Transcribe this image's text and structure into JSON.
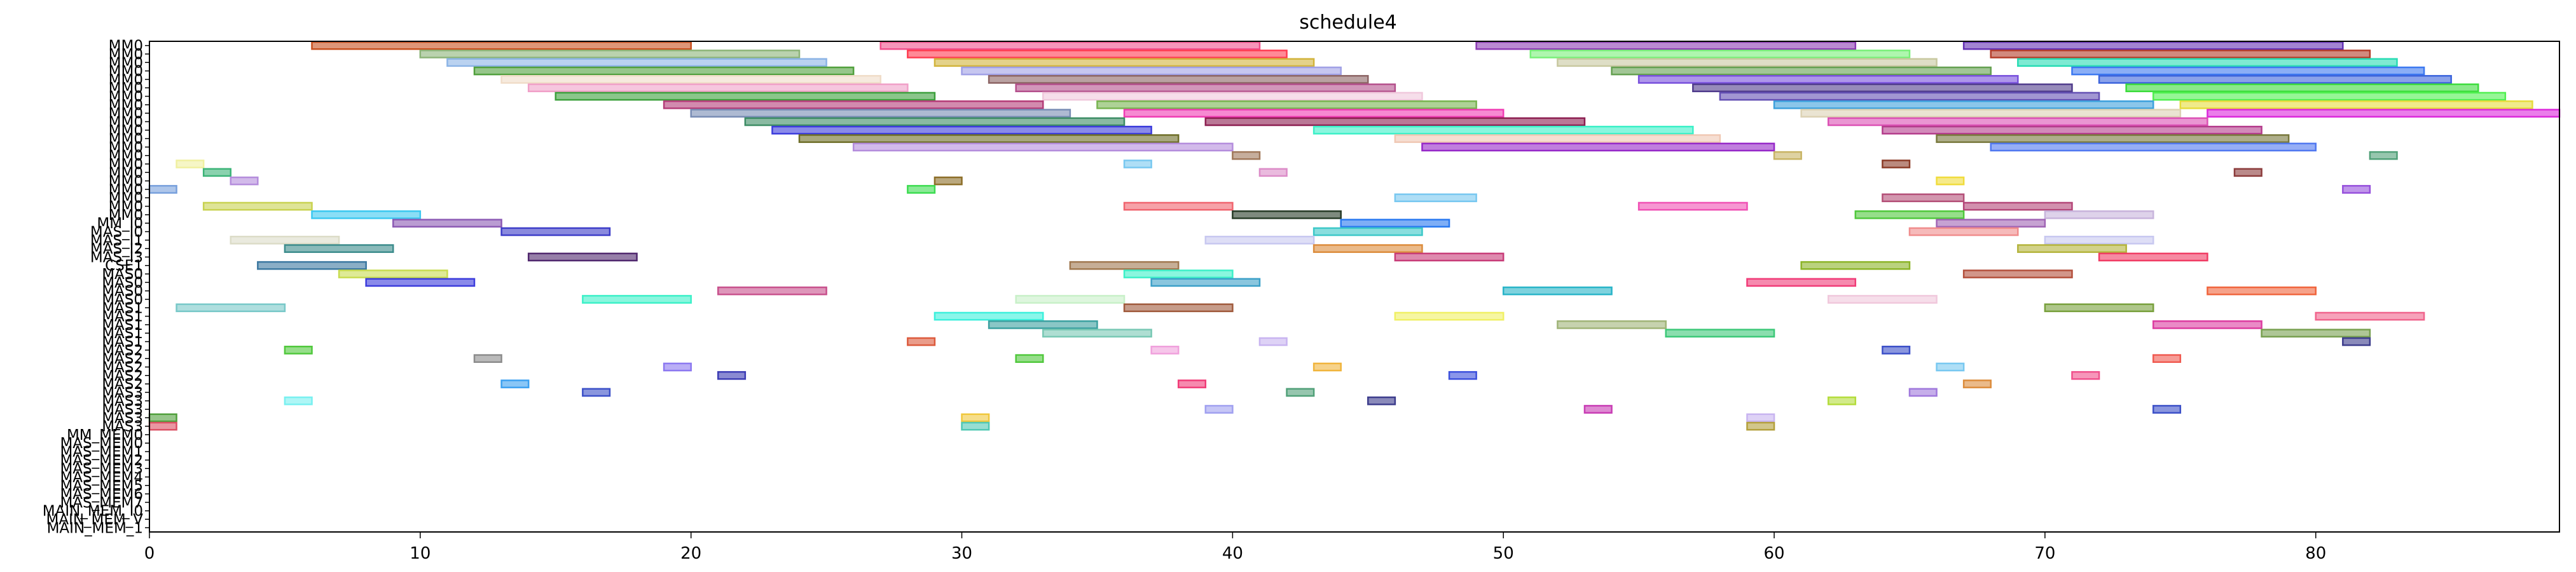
{
  "chart_data": {
    "type": "gantt",
    "title": "schedule4",
    "xlabel": "",
    "ylabel": "",
    "xlim": [
      0,
      89
    ],
    "xticks": [
      0,
      10,
      20,
      30,
      40,
      50,
      60,
      70,
      80
    ],
    "grid": false,
    "legend": "none",
    "rows": [
      "MM0",
      "MM0",
      "MM0",
      "MM0",
      "MM0",
      "MM0",
      "MM0",
      "MM0",
      "MM0",
      "MM0",
      "MM0",
      "MM0",
      "MM0",
      "MM0",
      "MM0",
      "MM0",
      "MM0",
      "MM0",
      "MM0",
      "MM0",
      "MM0",
      "MM_I0",
      "MAS_I0",
      "MAS_I1",
      "MAS_I2",
      "MAS_I3",
      "CSE1",
      "MAS0",
      "MAS0",
      "MAS0",
      "MAS0",
      "MAS1",
      "MAS1",
      "MAS1",
      "MAS1",
      "MAS1",
      "MAS2",
      "MAS2",
      "MAS2",
      "MAS2",
      "MAS2",
      "MAS3",
      "MAS3",
      "MAS3",
      "MAS3",
      "MAS3",
      "MM_MEM0",
      "MAS_MEM0",
      "MAS_MEM1",
      "MAS_MEM2",
      "MAS_MEM3",
      "MAS_MEM4",
      "MAS_MEM5",
      "MAS_MEM6",
      "MAS_MEM7",
      "MAIN_MEM_I0",
      "MAIN_MEM_V",
      "MAIN_MEM_1"
    ],
    "tasks": [
      {
        "row": 0,
        "start": 6,
        "end": 20,
        "color": "#c8501e"
      },
      {
        "row": 0,
        "start": 27,
        "end": 41,
        "color": "#f0508c"
      },
      {
        "row": 0,
        "start": 49,
        "end": 63,
        "color": "#8c3cb4"
      },
      {
        "row": 0,
        "start": 67,
        "end": 81,
        "color": "#6432b4"
      },
      {
        "row": 1,
        "start": 10,
        "end": 24,
        "color": "#8cb478"
      },
      {
        "row": 1,
        "start": 28,
        "end": 42,
        "color": "#ff3c50"
      },
      {
        "row": 1,
        "start": 51,
        "end": 65,
        "color": "#78f078"
      },
      {
        "row": 1,
        "start": 68,
        "end": 82,
        "color": "#b43c28"
      },
      {
        "row": 2,
        "start": 11,
        "end": 25,
        "color": "#8cb4e6"
      },
      {
        "row": 2,
        "start": 29,
        "end": 43,
        "color": "#d2b43c"
      },
      {
        "row": 2,
        "start": 52,
        "end": 66,
        "color": "#c8c8a0"
      },
      {
        "row": 2,
        "start": 69,
        "end": 83,
        "color": "#28dcb4"
      },
      {
        "row": 3,
        "start": 12,
        "end": 26,
        "color": "#50a03c"
      },
      {
        "row": 3,
        "start": 30,
        "end": 44,
        "color": "#a0a0e6"
      },
      {
        "row": 3,
        "start": 54,
        "end": 68,
        "color": "#64a050"
      },
      {
        "row": 3,
        "start": 71,
        "end": 84,
        "color": "#3c78f0"
      },
      {
        "row": 4,
        "start": 13,
        "end": 27,
        "color": "#f0dcc8"
      },
      {
        "row": 4,
        "start": 31,
        "end": 45,
        "color": "#8c6464"
      },
      {
        "row": 4,
        "start": 55,
        "end": 69,
        "color": "#7850dc"
      },
      {
        "row": 4,
        "start": 72,
        "end": 85,
        "color": "#3c64dc"
      },
      {
        "row": 5,
        "start": 14,
        "end": 28,
        "color": "#f0a0c8"
      },
      {
        "row": 5,
        "start": 32,
        "end": 46,
        "color": "#b4508c"
      },
      {
        "row": 5,
        "start": 57,
        "end": 71,
        "color": "#503c8c"
      },
      {
        "row": 5,
        "start": 73,
        "end": 86,
        "color": "#3cdc3c"
      },
      {
        "row": 6,
        "start": 15,
        "end": 29,
        "color": "#3ca03c"
      },
      {
        "row": 6,
        "start": 33,
        "end": 47,
        "color": "#f0c8dc"
      },
      {
        "row": 6,
        "start": 58,
        "end": 72,
        "color": "#6450b4"
      },
      {
        "row": 6,
        "start": 74,
        "end": 87,
        "color": "#50f050"
      },
      {
        "row": 7,
        "start": 19,
        "end": 33,
        "color": "#b43c78"
      },
      {
        "row": 7,
        "start": 35,
        "end": 49,
        "color": "#78b450"
      },
      {
        "row": 7,
        "start": 60,
        "end": 74,
        "color": "#3ca0dc"
      },
      {
        "row": 7,
        "start": 75,
        "end": 88,
        "color": "#e6dc3c"
      },
      {
        "row": 8,
        "start": 20,
        "end": 34,
        "color": "#788cb4"
      },
      {
        "row": 8,
        "start": 36,
        "end": 50,
        "color": "#f03cb4"
      },
      {
        "row": 8,
        "start": 61,
        "end": 75,
        "color": "#dcd2b4"
      },
      {
        "row": 8,
        "start": 76,
        "end": 89,
        "color": "#dc28dc"
      },
      {
        "row": 9,
        "start": 22,
        "end": 36,
        "color": "#3c8c64"
      },
      {
        "row": 9,
        "start": 39,
        "end": 53,
        "color": "#8c1e50"
      },
      {
        "row": 9,
        "start": 62,
        "end": 76,
        "color": "#dc50b4"
      },
      {
        "row": 10,
        "start": 23,
        "end": 37,
        "color": "#3c3cdc"
      },
      {
        "row": 10,
        "start": 43,
        "end": 57,
        "color": "#3cf0c8"
      },
      {
        "row": 10,
        "start": 64,
        "end": 78,
        "color": "#b43c8c"
      },
      {
        "row": 11,
        "start": 24,
        "end": 38,
        "color": "#6e6e28"
      },
      {
        "row": 11,
        "start": 46,
        "end": 58,
        "color": "#f0c8b4"
      },
      {
        "row": 11,
        "start": 66,
        "end": 79,
        "color": "#78783c"
      },
      {
        "row": 12,
        "start": 26,
        "end": 40,
        "color": "#b48cdc"
      },
      {
        "row": 12,
        "start": 47,
        "end": 60,
        "color": "#9628c8"
      },
      {
        "row": 12,
        "start": 68,
        "end": 80,
        "color": "#5078f0"
      },
      {
        "row": 13,
        "start": 40,
        "end": 41,
        "color": "#a0785a"
      },
      {
        "row": 13,
        "start": 60,
        "end": 61,
        "color": "#c8b464"
      },
      {
        "row": 13,
        "start": 82,
        "end": 83,
        "color": "#50a078"
      },
      {
        "row": 14,
        "start": 1,
        "end": 2,
        "color": "#f0f0a0"
      },
      {
        "row": 14,
        "start": 36,
        "end": 37,
        "color": "#78c8f0"
      },
      {
        "row": 14,
        "start": 64,
        "end": 65,
        "color": "#8c3c28"
      },
      {
        "row": 15,
        "start": 2,
        "end": 3,
        "color": "#3cb478"
      },
      {
        "row": 15,
        "start": 41,
        "end": 42,
        "color": "#dc8cc8"
      },
      {
        "row": 15,
        "start": 77,
        "end": 78,
        "color": "#8c3c3c"
      },
      {
        "row": 16,
        "start": 3,
        "end": 4,
        "color": "#b48cdc"
      },
      {
        "row": 16,
        "start": 29,
        "end": 30,
        "color": "#8c6e28"
      },
      {
        "row": 16,
        "start": 66,
        "end": 67,
        "color": "#f0dc3c"
      },
      {
        "row": 17,
        "start": 0,
        "end": 1,
        "color": "#78a0dc"
      },
      {
        "row": 17,
        "start": 28,
        "end": 29,
        "color": "#3cdc50"
      },
      {
        "row": 17,
        "start": 81,
        "end": 82,
        "color": "#9650dc"
      },
      {
        "row": 18,
        "start": 46,
        "end": 49,
        "color": "#78c8f0"
      },
      {
        "row": 18,
        "start": 64,
        "end": 67,
        "color": "#b45078"
      },
      {
        "row": 19,
        "start": 2,
        "end": 6,
        "color": "#c8d250"
      },
      {
        "row": 19,
        "start": 36,
        "end": 40,
        "color": "#f0646e"
      },
      {
        "row": 19,
        "start": 55,
        "end": 59,
        "color": "#f050b4"
      },
      {
        "row": 19,
        "start": 67,
        "end": 71,
        "color": "#b44678"
      },
      {
        "row": 20,
        "start": 6,
        "end": 10,
        "color": "#3cc8f0"
      },
      {
        "row": 20,
        "start": 40,
        "end": 44,
        "color": "#283c28"
      },
      {
        "row": 20,
        "start": 63,
        "end": 67,
        "color": "#50c83c"
      },
      {
        "row": 20,
        "start": 70,
        "end": 74,
        "color": "#c8b4dc"
      },
      {
        "row": 21,
        "start": 9,
        "end": 13,
        "color": "#8c5ab4"
      },
      {
        "row": 21,
        "start": 44,
        "end": 48,
        "color": "#2878f0"
      },
      {
        "row": 21,
        "start": 66,
        "end": 70,
        "color": "#a064b4"
      },
      {
        "row": 22,
        "start": 13,
        "end": 17,
        "color": "#3c3cc8"
      },
      {
        "row": 22,
        "start": 43,
        "end": 47,
        "color": "#3cc8c8"
      },
      {
        "row": 22,
        "start": 65,
        "end": 69,
        "color": "#f08c8c"
      },
      {
        "row": 23,
        "start": 3,
        "end": 7,
        "color": "#dcdcc8"
      },
      {
        "row": 23,
        "start": 39,
        "end": 43,
        "color": "#c8c8f0"
      },
      {
        "row": 23,
        "start": 70,
        "end": 74,
        "color": "#c8c8f0"
      },
      {
        "row": 24,
        "start": 5,
        "end": 9,
        "color": "#3c8c8c"
      },
      {
        "row": 24,
        "start": 43,
        "end": 47,
        "color": "#dc8c3c"
      },
      {
        "row": 24,
        "start": 69,
        "end": 73,
        "color": "#b4b43c"
      },
      {
        "row": 25,
        "start": 14,
        "end": 18,
        "color": "#50286e"
      },
      {
        "row": 25,
        "start": 46,
        "end": 50,
        "color": "#c83c78"
      },
      {
        "row": 25,
        "start": 72,
        "end": 76,
        "color": "#f03c64"
      },
      {
        "row": 26,
        "start": 4,
        "end": 8,
        "color": "#3c78a0"
      },
      {
        "row": 26,
        "start": 34,
        "end": 38,
        "color": "#a07850"
      },
      {
        "row": 26,
        "start": 61,
        "end": 65,
        "color": "#8cb428"
      },
      {
        "row": 27,
        "start": 7,
        "end": 11,
        "color": "#c8dc50"
      },
      {
        "row": 27,
        "start": 36,
        "end": 40,
        "color": "#3cf0c8"
      },
      {
        "row": 27,
        "start": 67,
        "end": 71,
        "color": "#b4503c"
      },
      {
        "row": 28,
        "start": 8,
        "end": 12,
        "color": "#3c3cdc"
      },
      {
        "row": 28,
        "start": 37,
        "end": 41,
        "color": "#3ca0c8"
      },
      {
        "row": 28,
        "start": 59,
        "end": 63,
        "color": "#f03c78"
      },
      {
        "row": 29,
        "start": 21,
        "end": 25,
        "color": "#c8508c"
      },
      {
        "row": 29,
        "start": 50,
        "end": 54,
        "color": "#28b4c8"
      },
      {
        "row": 29,
        "start": 76,
        "end": 80,
        "color": "#f0643c"
      },
      {
        "row": 30,
        "start": 16,
        "end": 20,
        "color": "#3cf0c8"
      },
      {
        "row": 30,
        "start": 32,
        "end": 36,
        "color": "#c8f0c8"
      },
      {
        "row": 30,
        "start": 62,
        "end": 66,
        "color": "#f0c8dc"
      },
      {
        "row": 31,
        "start": 1,
        "end": 5,
        "color": "#78c8c8"
      },
      {
        "row": 31,
        "start": 36,
        "end": 40,
        "color": "#a05a3c"
      },
      {
        "row": 31,
        "start": 70,
        "end": 74,
        "color": "#78a03c"
      },
      {
        "row": 32,
        "start": 29,
        "end": 33,
        "color": "#3cf0dc"
      },
      {
        "row": 32,
        "start": 46,
        "end": 50,
        "color": "#f0f064"
      },
      {
        "row": 32,
        "start": 80,
        "end": 84,
        "color": "#f0648c"
      },
      {
        "row": 33,
        "start": 31,
        "end": 35,
        "color": "#3ca0a0"
      },
      {
        "row": 33,
        "start": 52,
        "end": 56,
        "color": "#a0b478"
      },
      {
        "row": 33,
        "start": 74,
        "end": 78,
        "color": "#dc3ca0"
      },
      {
        "row": 34,
        "start": 33,
        "end": 37,
        "color": "#78c8b4"
      },
      {
        "row": 34,
        "start": 56,
        "end": 60,
        "color": "#3cc878"
      },
      {
        "row": 34,
        "start": 78,
        "end": 82,
        "color": "#78a050"
      },
      {
        "row": 35,
        "start": 28,
        "end": 29,
        "color": "#dc5a3c"
      },
      {
        "row": 35,
        "start": 41,
        "end": 42,
        "color": "#c8b4f0"
      },
      {
        "row": 35,
        "start": 81,
        "end": 82,
        "color": "#3c3c8c"
      },
      {
        "row": 36,
        "start": 5,
        "end": 6,
        "color": "#50c83c"
      },
      {
        "row": 36,
        "start": 37,
        "end": 38,
        "color": "#f0a0dc"
      },
      {
        "row": 36,
        "start": 64,
        "end": 65,
        "color": "#3c50c8"
      },
      {
        "row": 37,
        "start": 12,
        "end": 13,
        "color": "#8c8c8c"
      },
      {
        "row": 37,
        "start": 32,
        "end": 33,
        "color": "#50c83c"
      },
      {
        "row": 37,
        "start": 74,
        "end": 75,
        "color": "#f05a50"
      },
      {
        "row": 38,
        "start": 19,
        "end": 20,
        "color": "#8c78f0"
      },
      {
        "row": 38,
        "start": 43,
        "end": 44,
        "color": "#f0b43c"
      },
      {
        "row": 38,
        "start": 66,
        "end": 67,
        "color": "#78c8f0"
      },
      {
        "row": 39,
        "start": 21,
        "end": 22,
        "color": "#3c3cb4"
      },
      {
        "row": 39,
        "start": 48,
        "end": 49,
        "color": "#3c50dc"
      },
      {
        "row": 39,
        "start": 71,
        "end": 72,
        "color": "#f0508c"
      },
      {
        "row": 40,
        "start": 13,
        "end": 14,
        "color": "#3ca0f0"
      },
      {
        "row": 40,
        "start": 38,
        "end": 39,
        "color": "#f03c78"
      },
      {
        "row": 40,
        "start": 67,
        "end": 68,
        "color": "#dc8c3c"
      },
      {
        "row": 41,
        "start": 16,
        "end": 17,
        "color": "#3c50c8"
      },
      {
        "row": 41,
        "start": 42,
        "end": 43,
        "color": "#50a078"
      },
      {
        "row": 41,
        "start": 65,
        "end": 66,
        "color": "#a078dc"
      },
      {
        "row": 42,
        "start": 5,
        "end": 6,
        "color": "#78f0f0"
      },
      {
        "row": 42,
        "start": 45,
        "end": 46,
        "color": "#3c3c8c"
      },
      {
        "row": 42,
        "start": 62,
        "end": 63,
        "color": "#b4dc3c"
      },
      {
        "row": 43,
        "start": 39,
        "end": 40,
        "color": "#a0a0f0"
      },
      {
        "row": 43,
        "start": 53,
        "end": 54,
        "color": "#c83cb4"
      },
      {
        "row": 43,
        "start": 74,
        "end": 75,
        "color": "#3c50c8"
      },
      {
        "row": 44,
        "start": 0,
        "end": 1,
        "color": "#50a03c"
      },
      {
        "row": 44,
        "start": 30,
        "end": 31,
        "color": "#f0c83c"
      },
      {
        "row": 44,
        "start": 59,
        "end": 60,
        "color": "#c8b4f0"
      },
      {
        "row": 45,
        "start": 0,
        "end": 1,
        "color": "#dc5064"
      },
      {
        "row": 45,
        "start": 30,
        "end": 31,
        "color": "#50c8b4"
      },
      {
        "row": 45,
        "start": 59,
        "end": 60,
        "color": "#b4a03c"
      }
    ]
  }
}
